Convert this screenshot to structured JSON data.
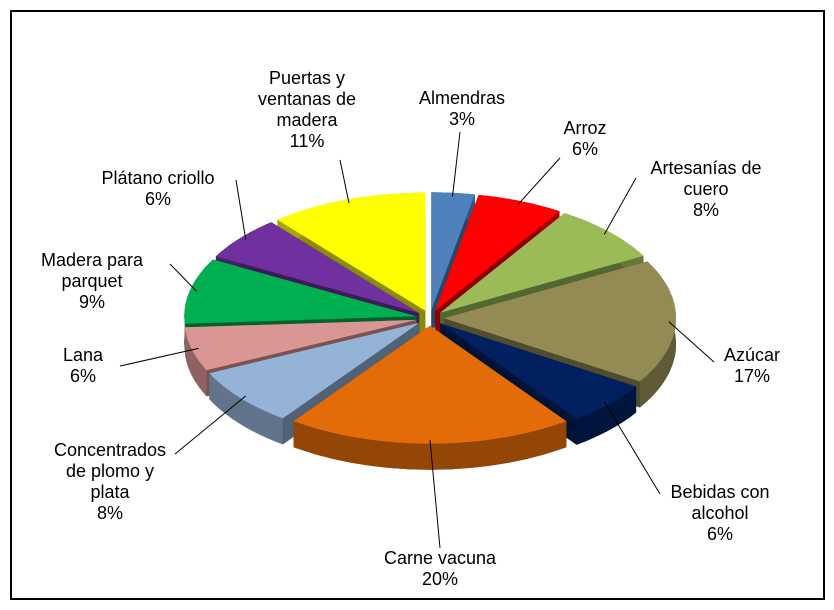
{
  "chart_data": {
    "type": "pie",
    "categories": [
      "Almendras",
      "Arroz",
      "Artesanías de cuero",
      "Azúcar",
      "Bebidas con alcohol",
      "Carne vacuna",
      "Concentrados de plomo y plata",
      "Lana",
      "Madera para parquet",
      "Plátano criollo",
      "Puertas y ventanas de madera"
    ],
    "values": [
      3,
      6,
      8,
      17,
      6,
      20,
      8,
      6,
      9,
      6,
      11
    ],
    "value_labels": [
      "3%",
      "6%",
      "8%",
      "17%",
      "6%",
      "20%",
      "8%",
      "6%",
      "9%",
      "6%",
      "11%"
    ],
    "colors": [
      "#4f81bd",
      "#ff0000",
      "#9bbb59",
      "#948a54",
      "#002060",
      "#e36c09",
      "#95b3d7",
      "#d99694",
      "#00b050",
      "#7030a0",
      "#ffff00"
    ]
  }
}
